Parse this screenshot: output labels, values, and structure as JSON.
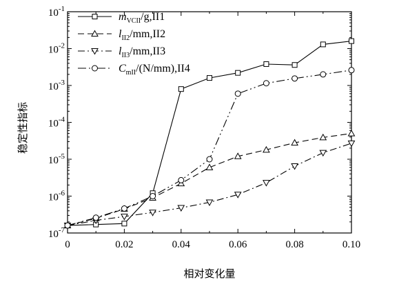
{
  "chart_data": {
    "type": "line",
    "xlabel": "相对变化量",
    "ylabel": "稳定性指标",
    "xlim": [
      0,
      0.1
    ],
    "ylim": [
      1e-07,
      0.1
    ],
    "yscale": "log",
    "xticks": [
      "0",
      "0.02",
      "0.04",
      "0.06",
      "0.08",
      "0.10"
    ],
    "yticks": [
      {
        "base": "10",
        "exp": "-7"
      },
      {
        "base": "10",
        "exp": "-6"
      },
      {
        "base": "10",
        "exp": "-5"
      },
      {
        "base": "10",
        "exp": "-4"
      },
      {
        "base": "10",
        "exp": "-3"
      },
      {
        "base": "10",
        "exp": "-2"
      },
      {
        "base": "10",
        "exp": "-1"
      }
    ],
    "x": [
      0,
      0.01,
      0.02,
      0.03,
      0.04,
      0.05,
      0.06,
      0.07,
      0.08,
      0.09,
      0.1
    ],
    "legend_position": "top-left",
    "series": [
      {
        "name": "mVCII/g,II1",
        "legend": {
          "main": "m",
          "sub": "VCII",
          "rest": "/g,II1"
        },
        "marker": "square",
        "dash": "",
        "values": [
          1.6e-07,
          1.7e-07,
          1.8e-07,
          1.2e-06,
          0.0008,
          0.0016,
          0.0022,
          0.0038,
          0.0036,
          0.013,
          0.016
        ]
      },
      {
        "name": "lII2/mm,II2",
        "legend": {
          "main": "l",
          "sub": "II2",
          "rest": "/mm,II2"
        },
        "marker": "triangle-up",
        "dash": "9,5",
        "values": [
          1.6e-07,
          2.5e-07,
          4.5e-07,
          9e-07,
          2.2e-06,
          6e-06,
          1.2e-05,
          1.8e-05,
          2.8e-05,
          3.9e-05,
          5e-05
        ]
      },
      {
        "name": "lII3/mm,II3",
        "legend": {
          "main": "l",
          "sub": "II3",
          "rest": "/mm,II3"
        },
        "marker": "triangle-down",
        "dash": "10,4,2,4",
        "values": [
          1.6e-07,
          2.2e-07,
          2.8e-07,
          3.6e-07,
          4.8e-07,
          6.8e-07,
          1.1e-06,
          2.3e-06,
          6.5e-06,
          1.5e-05,
          2.7e-05
        ]
      },
      {
        "name": "CmII/(N/mm),II4",
        "legend": {
          "main": "C",
          "sub": "mII",
          "rest": "/(N/mm),II4"
        },
        "marker": "circle",
        "dash": "12,4,2,4,2,4",
        "values": [
          1.6e-07,
          2.6e-07,
          4.6e-07,
          1e-06,
          2.7e-06,
          1e-05,
          0.0006,
          0.00115,
          0.00155,
          0.002,
          0.0026
        ]
      }
    ]
  }
}
